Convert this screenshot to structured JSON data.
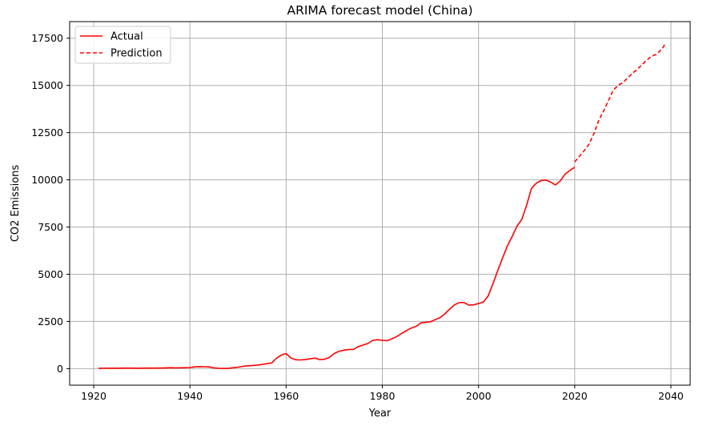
{
  "chart_data": {
    "type": "line",
    "title": "ARIMA forecast model (China)",
    "xlabel": "Year",
    "ylabel": "CO2 Emissions",
    "xlim": [
      1915,
      2044
    ],
    "ylim": [
      -875,
      18380
    ],
    "xticks": [
      1920,
      1940,
      1960,
      1980,
      2000,
      2020,
      2040
    ],
    "yticks": [
      0,
      2500,
      5000,
      7500,
      10000,
      12500,
      15000,
      17500
    ],
    "grid": true,
    "legend_position": "top-left",
    "series": [
      {
        "name": "Actual",
        "color": "#ff0000",
        "style": "solid",
        "x": [
          1921,
          1923,
          1925,
          1927,
          1929,
          1931,
          1933,
          1935,
          1936,
          1937,
          1939,
          1940,
          1941,
          1942,
          1943,
          1944,
          1945,
          1946,
          1947,
          1948,
          1949,
          1950,
          1951,
          1952,
          1953,
          1954,
          1955,
          1956,
          1957,
          1958,
          1959,
          1960,
          1961,
          1962,
          1963,
          1964,
          1965,
          1966,
          1967,
          1968,
          1969,
          1970,
          1971,
          1972,
          1973,
          1974,
          1975,
          1976,
          1977,
          1978,
          1979,
          1980,
          1981,
          1982,
          1983,
          1984,
          1985,
          1986,
          1987,
          1988,
          1989,
          1990,
          1991,
          1992,
          1993,
          1994,
          1995,
          1996,
          1997,
          1998,
          1999,
          2000,
          2001,
          2002,
          2003,
          2004,
          2005,
          2006,
          2007,
          2008,
          2009,
          2010,
          2011,
          2012,
          2013,
          2014,
          2015,
          2016,
          2017,
          2018,
          2019,
          2020
        ],
        "y": [
          20,
          25,
          25,
          30,
          25,
          30,
          30,
          40,
          50,
          40,
          50,
          60,
          90,
          110,
          100,
          90,
          40,
          20,
          10,
          10,
          50,
          80,
          120,
          150,
          170,
          190,
          220,
          260,
          300,
          550,
          720,
          800,
          560,
          470,
          460,
          480,
          520,
          560,
          480,
          500,
          600,
          800,
          920,
          980,
          1010,
          1020,
          1170,
          1250,
          1330,
          1500,
          1530,
          1500,
          1480,
          1580,
          1700,
          1860,
          2010,
          2150,
          2240,
          2420,
          2460,
          2480,
          2600,
          2700,
          2900,
          3150,
          3380,
          3500,
          3500,
          3360,
          3380,
          3450,
          3530,
          3850,
          4500,
          5200,
          5860,
          6500,
          7000,
          7550,
          7900,
          8650,
          9540,
          9820,
          9960,
          9990,
          9880,
          9730,
          9950,
          10300,
          10500,
          10670
        ]
      },
      {
        "name": "Prediction",
        "color": "#ff0000",
        "style": "dashed",
        "x": [
          2020,
          2021,
          2022,
          2023,
          2024,
          2025,
          2026,
          2027,
          2028,
          2029,
          2030,
          2031,
          2032,
          2033,
          2034,
          2035,
          2036,
          2037,
          2038,
          2039
        ],
        "y": [
          10950,
          11250,
          11550,
          11900,
          12450,
          13150,
          13650,
          14200,
          14750,
          15000,
          15150,
          15400,
          15650,
          15850,
          16100,
          16350,
          16550,
          16650,
          16900,
          17250
        ]
      }
    ]
  }
}
